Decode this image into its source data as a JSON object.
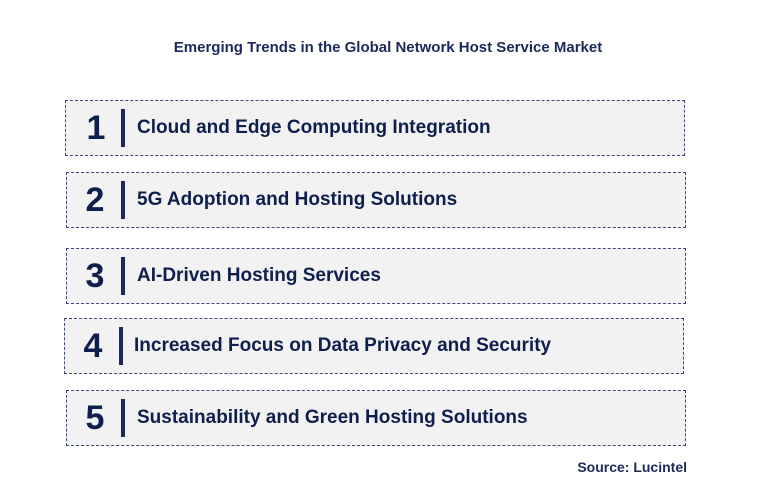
{
  "title": "Emerging Trends in the Global Network Host Service Market",
  "trends": [
    {
      "number": "1",
      "label": "Cloud and Edge Computing Integration"
    },
    {
      "number": "2",
      "label": "5G Adoption and Hosting Solutions"
    },
    {
      "number": "3",
      "label": "AI-Driven Hosting Services"
    },
    {
      "number": "4",
      "label": "Increased Focus on Data Privacy and Security"
    },
    {
      "number": "5",
      "label": "Sustainability and Green Hosting Solutions"
    }
  ],
  "source": "Source: Lucintel"
}
